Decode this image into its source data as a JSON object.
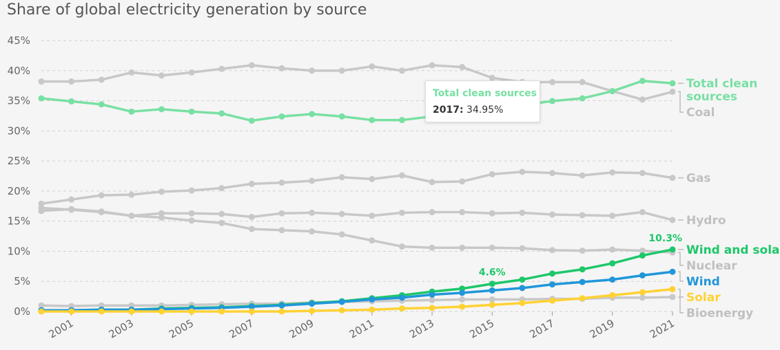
{
  "title": "Share of global electricity generation by source",
  "tooltip": {
    "series": "Total clean sources",
    "year": "2017:",
    "value": "34.95%"
  },
  "chart_data": {
    "type": "line",
    "title": "Share of global electricity generation by source",
    "x": [
      2000,
      2001,
      2002,
      2003,
      2004,
      2005,
      2006,
      2007,
      2008,
      2009,
      2010,
      2011,
      2012,
      2013,
      2014,
      2015,
      2016,
      2017,
      2018,
      2019,
      2020,
      2021
    ],
    "x_tick_labels": [
      "2001",
      "2003",
      "2005",
      "2007",
      "2009",
      "2011",
      "2013",
      "2015",
      "2017",
      "2019",
      "2021"
    ],
    "y_tick_labels": [
      "0%",
      "5%",
      "10%",
      "15%",
      "20%",
      "25%",
      "30%",
      "35%",
      "40%",
      "45%"
    ],
    "ylim": [
      0,
      45
    ],
    "grid": "horizontal dashed",
    "series": [
      {
        "name": "Coal",
        "color": "#c8c8c8",
        "end_label": [
          "Coal"
        ],
        "values": [
          38.2,
          38.2,
          38.5,
          39.7,
          39.2,
          39.7,
          40.3,
          40.9,
          40.4,
          40.0,
          40.0,
          40.7,
          40.0,
          40.9,
          40.6,
          38.8,
          38.1,
          38.1,
          38.1,
          36.6,
          35.2,
          36.5
        ]
      },
      {
        "name": "Gas",
        "color": "#c8c8c8",
        "end_label": [
          "Gas"
        ],
        "values": [
          17.9,
          18.6,
          19.3,
          19.4,
          19.9,
          20.1,
          20.5,
          21.2,
          21.4,
          21.7,
          22.3,
          22.0,
          22.6,
          21.5,
          21.6,
          22.8,
          23.2,
          23.0,
          22.6,
          23.1,
          23.0,
          22.2
        ]
      },
      {
        "name": "Hydro",
        "color": "#c8c8c8",
        "end_label": [
          "Hydro"
        ],
        "values": [
          16.7,
          17.0,
          16.6,
          15.9,
          16.3,
          16.3,
          16.2,
          15.7,
          16.3,
          16.4,
          16.2,
          15.9,
          16.4,
          16.5,
          16.5,
          16.3,
          16.4,
          16.1,
          16.0,
          15.9,
          16.5,
          15.2
        ]
      },
      {
        "name": "Nuclear",
        "color": "#c8c8c8",
        "end_label": [
          "Nuclear"
        ],
        "values": [
          17.2,
          16.9,
          16.5,
          15.9,
          15.6,
          15.1,
          14.7,
          13.7,
          13.5,
          13.3,
          12.8,
          11.8,
          10.8,
          10.6,
          10.6,
          10.6,
          10.5,
          10.2,
          10.1,
          10.3,
          10.1,
          9.8
        ]
      },
      {
        "name": "Bioenergy",
        "color": "#c8c8c8",
        "end_label": [
          "Bioenergy"
        ],
        "values": [
          1.0,
          0.9,
          1.0,
          1.0,
          1.0,
          1.1,
          1.2,
          1.3,
          1.3,
          1.5,
          1.6,
          1.7,
          1.8,
          1.9,
          2.0,
          2.0,
          2.0,
          2.1,
          2.1,
          2.3,
          2.3,
          2.4
        ]
      },
      {
        "name": "Total clean sources",
        "color": "#78e0a3",
        "end_label": [
          "Total clean",
          "sources"
        ],
        "values": [
          35.4,
          34.9,
          34.4,
          33.2,
          33.6,
          33.2,
          32.9,
          31.7,
          32.4,
          32.8,
          32.4,
          31.8,
          31.8,
          32.4,
          33.1,
          33.8,
          34.3,
          34.95,
          35.4,
          36.6,
          38.3,
          37.9
        ]
      },
      {
        "name": "Wind and solar",
        "color": "#1dc76a",
        "end_label": [
          "Wind and solar"
        ],
        "values": [
          0.2,
          0.2,
          0.3,
          0.3,
          0.5,
          0.6,
          0.7,
          0.9,
          1.1,
          1.4,
          1.7,
          2.2,
          2.7,
          3.3,
          3.8,
          4.6,
          5.3,
          6.3,
          7.0,
          8.0,
          9.3,
          10.3
        ]
      },
      {
        "name": "Wind",
        "color": "#2196d9",
        "end_label": [
          "Wind"
        ],
        "values": [
          0.2,
          0.2,
          0.3,
          0.3,
          0.4,
          0.5,
          0.6,
          0.8,
          1.0,
          1.3,
          1.6,
          2.0,
          2.3,
          2.8,
          3.1,
          3.5,
          3.9,
          4.5,
          4.9,
          5.3,
          6.0,
          6.6
        ]
      },
      {
        "name": "Solar",
        "color": "#ffd234",
        "end_label": [
          "Solar"
        ],
        "values": [
          0.0,
          0.0,
          0.0,
          0.0,
          0.0,
          0.0,
          0.0,
          0.0,
          0.0,
          0.1,
          0.2,
          0.3,
          0.5,
          0.6,
          0.8,
          1.1,
          1.4,
          1.8,
          2.2,
          2.7,
          3.2,
          3.7
        ]
      }
    ],
    "annotations": [
      {
        "series": "Wind and solar",
        "x": 2015,
        "text": "4.6%"
      },
      {
        "series": "Wind and solar",
        "x": 2021,
        "text": "10.3%"
      }
    ]
  }
}
